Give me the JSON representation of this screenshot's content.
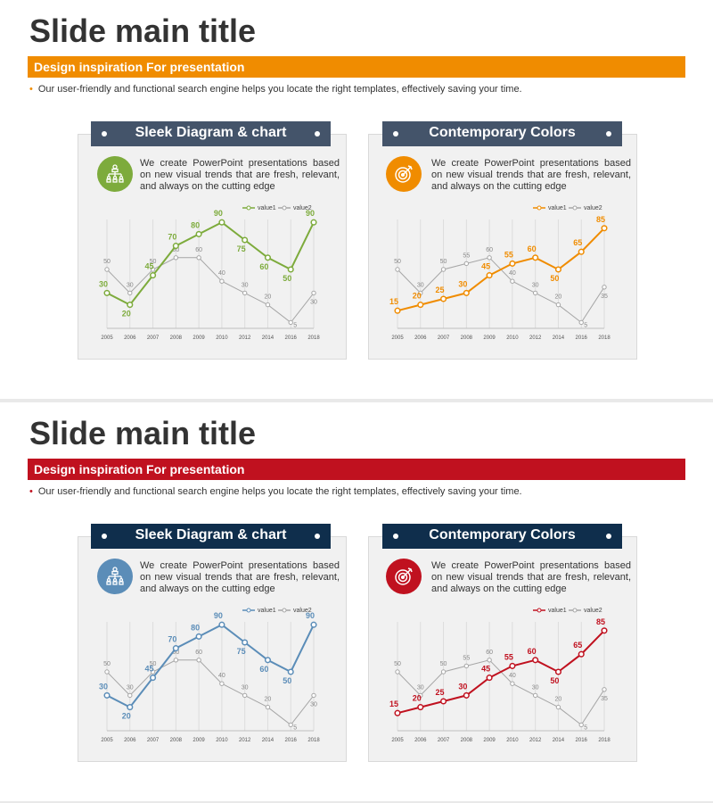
{
  "slides": [
    {
      "title": "Slide main title",
      "subtitle": "Design inspiration For presentation",
      "bullet": "Our user-friendly and functional search engine helps you locate the right templates, effectively saving your time.",
      "bullet_marker": "•",
      "colors": {
        "accent": "#f08c00",
        "bullet": "#f08c00",
        "header": "#44546a",
        "chart1": "#7dab3c",
        "chart2": "#f08c00",
        "icon1": "#7dab3c",
        "icon2": "#f08c00"
      },
      "cards": [
        {
          "header": "Sleek Diagram & chart",
          "icon": "org-chart-icon",
          "description": "We create PowerPoint presentations based on new visual trends that are fresh, relevant, and always on the cutting edge"
        },
        {
          "header": "Contemporary Colors",
          "icon": "target-icon",
          "description": "We create PowerPoint presentations based on new visual trends that are fresh, relevant, and always on the cutting edge"
        }
      ]
    },
    {
      "title": "Slide main title",
      "subtitle": "Design inspiration For presentation",
      "bullet": "Our user-friendly and functional search engine helps you locate the right templates, effectively saving your time.",
      "bullet_marker": "•",
      "colors": {
        "accent": "#c0111f",
        "bullet": "#c0111f",
        "header": "#0f2e4c",
        "chart1": "#5b8db8",
        "chart2": "#c0111f",
        "icon1": "#5b8db8",
        "icon2": "#c0111f"
      },
      "cards": [
        {
          "header": "Sleek Diagram & chart",
          "icon": "org-chart-icon",
          "description": "We create PowerPoint presentations based on new visual trends that are fresh, relevant, and always on the cutting edge"
        },
        {
          "header": "Contemporary Colors",
          "icon": "target-icon",
          "description": "We create PowerPoint presentations based on new visual trends that are fresh, relevant, and always on the cutting edge"
        }
      ]
    }
  ],
  "chart_data": [
    {
      "type": "line",
      "title": "",
      "xlabel": "",
      "ylabel": "",
      "ylim": [
        0,
        100
      ],
      "grid": "vertical",
      "legend": "top-right",
      "categories": [
        "2005",
        "2006",
        "2007",
        "2008",
        "2009",
        "2010",
        "2012",
        "2014",
        "2016",
        "2018"
      ],
      "series": [
        {
          "name": "value1",
          "values": [
            30,
            20,
            45,
            70,
            80,
            90,
            75,
            60,
            50,
            90
          ]
        },
        {
          "name": "value2",
          "values": [
            50,
            30,
            50,
            60,
            60,
            40,
            30,
            20,
            5,
            30
          ]
        }
      ]
    },
    {
      "type": "line",
      "title": "",
      "xlabel": "",
      "ylabel": "",
      "ylim": [
        0,
        100
      ],
      "grid": "vertical",
      "legend": "top-right",
      "categories": [
        "2005",
        "2006",
        "2007",
        "2008",
        "2009",
        "2010",
        "2012",
        "2014",
        "2016",
        "2018"
      ],
      "series": [
        {
          "name": "value1",
          "values": [
            15,
            20,
            25,
            30,
            45,
            55,
            60,
            50,
            65,
            85
          ]
        },
        {
          "name": "value2",
          "values": [
            50,
            30,
            50,
            55,
            60,
            40,
            30,
            20,
            5,
            35
          ]
        }
      ]
    },
    {
      "type": "line",
      "title": "",
      "xlabel": "",
      "ylabel": "",
      "ylim": [
        0,
        100
      ],
      "grid": "vertical",
      "legend": "top-right",
      "categories": [
        "2005",
        "2006",
        "2007",
        "2008",
        "2009",
        "2010",
        "2012",
        "2014",
        "2016",
        "2018"
      ],
      "series": [
        {
          "name": "value1",
          "values": [
            30,
            20,
            45,
            70,
            80,
            90,
            75,
            60,
            50,
            90
          ]
        },
        {
          "name": "value2",
          "values": [
            50,
            30,
            50,
            60,
            60,
            40,
            30,
            20,
            5,
            30
          ]
        }
      ]
    },
    {
      "type": "line",
      "title": "",
      "xlabel": "",
      "ylabel": "",
      "ylim": [
        0,
        100
      ],
      "grid": "vertical",
      "legend": "top-right",
      "categories": [
        "2005",
        "2006",
        "2007",
        "2008",
        "2009",
        "2010",
        "2012",
        "2014",
        "2016",
        "2018"
      ],
      "series": [
        {
          "name": "value1",
          "values": [
            15,
            20,
            25,
            30,
            45,
            55,
            60,
            50,
            65,
            85
          ]
        },
        {
          "name": "value2",
          "values": [
            50,
            30,
            50,
            55,
            60,
            40,
            30,
            20,
            5,
            35
          ]
        }
      ]
    }
  ]
}
